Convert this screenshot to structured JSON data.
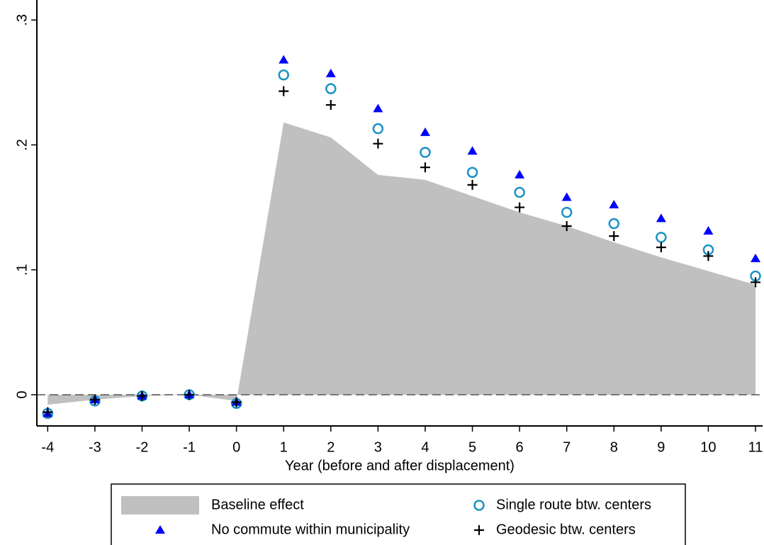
{
  "chart_data": {
    "type": "scatter",
    "x_label": "Year (before and after displacement)",
    "x": [
      -4,
      -3,
      -2,
      -1,
      0,
      1,
      2,
      3,
      4,
      5,
      6,
      7,
      8,
      9,
      10,
      11
    ],
    "xlim": [
      -4.23,
      11.15
    ],
    "xticks": [
      -4,
      -3,
      -2,
      -1,
      0,
      1,
      2,
      3,
      4,
      5,
      6,
      7,
      8,
      9,
      10,
      11
    ],
    "ylim": [
      -0.025,
      0.316
    ],
    "yticks": [
      0,
      {
        "value": 0.1,
        "label": ".1"
      },
      {
        "value": 0.2,
        "label": ".2"
      },
      {
        "value": 0.3,
        "label": ".3"
      }
    ],
    "zero_line": true,
    "series": [
      {
        "name": "Baseline effect",
        "marker": "area",
        "color": "#c0c0c0",
        "values": [
          -0.008,
          -0.004,
          -0.001,
          0.0,
          -0.005,
          0.218,
          0.206,
          0.176,
          0.172,
          0.159,
          0.146,
          0.135,
          0.122,
          0.11,
          0.099,
          0.088
        ]
      },
      {
        "name": "Single route btw. centers",
        "marker": "circle",
        "color": "#1b93c4",
        "values": [
          -0.015,
          -0.005,
          -0.001,
          0.0,
          -0.007,
          0.256,
          0.245,
          0.213,
          0.194,
          0.178,
          0.162,
          0.146,
          0.137,
          0.126,
          0.116,
          0.095
        ]
      },
      {
        "name": "No commute within municipality",
        "marker": "triangle",
        "color": "#0000ff",
        "values": [
          -0.015,
          -0.004,
          -0.001,
          0.0,
          -0.006,
          0.268,
          0.257,
          0.229,
          0.21,
          0.195,
          0.176,
          0.158,
          0.152,
          0.141,
          0.131,
          0.109
        ]
      },
      {
        "name": "Geodesic btw. centers",
        "marker": "plus",
        "color": "#000000",
        "values": [
          -0.014,
          -0.004,
          -0.001,
          0.0,
          -0.006,
          0.243,
          0.232,
          0.201,
          0.182,
          0.168,
          0.15,
          0.135,
          0.127,
          0.118,
          0.111,
          0.09
        ]
      }
    ]
  }
}
